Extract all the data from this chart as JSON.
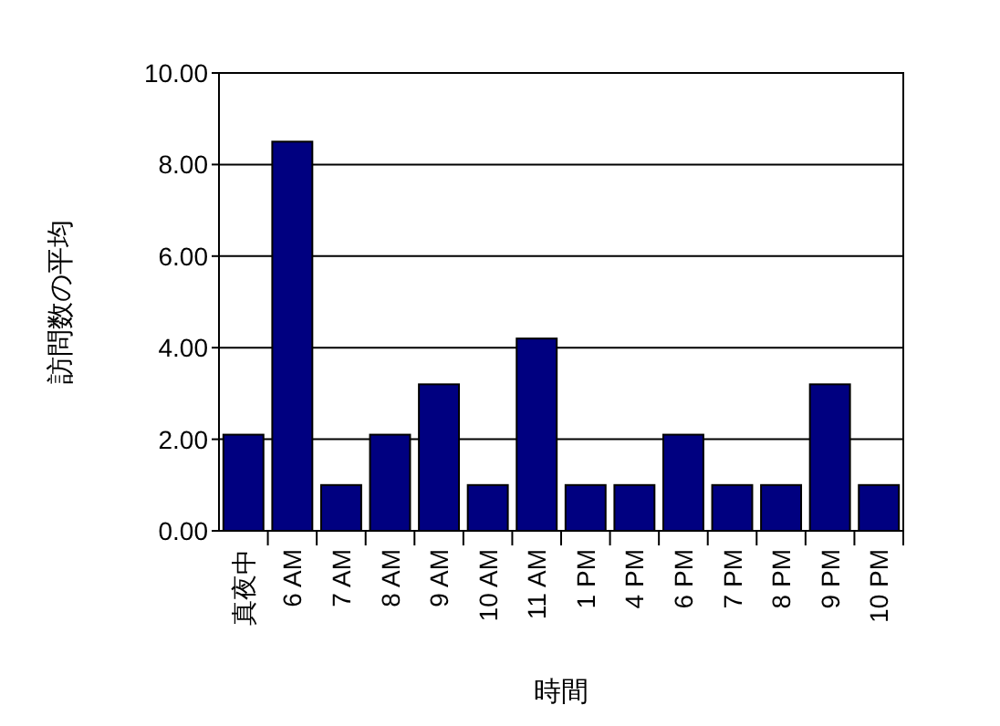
{
  "chart_data": {
    "type": "bar",
    "xlabel": "時間",
    "ylabel": "訪問数の平均",
    "categories": [
      "真夜中",
      "6 AM",
      "7 AM",
      "8 AM",
      "9 AM",
      "10 AM",
      "11 AM",
      "1 PM",
      "4 PM",
      "6 PM",
      "7 PM",
      "8 PM",
      "9 PM",
      "10 PM"
    ],
    "series": [
      {
        "color": "#000080",
        "values": [
          2.1,
          8.5,
          1.0,
          2.1,
          3.2,
          1.0,
          4.2,
          1.0,
          1.0,
          2.1,
          1.0,
          1.0,
          3.2,
          1.0
        ]
      }
    ],
    "ylim": [
      0,
      10
    ],
    "yticks": [
      {
        "value": 0,
        "label": "0.00"
      },
      {
        "value": 2,
        "label": "2.00"
      },
      {
        "value": 4,
        "label": "4.00"
      },
      {
        "value": 6,
        "label": "6.00"
      },
      {
        "value": 8,
        "label": "8.00"
      },
      {
        "value": 10,
        "label": "10.00"
      }
    ],
    "grid": "y"
  }
}
